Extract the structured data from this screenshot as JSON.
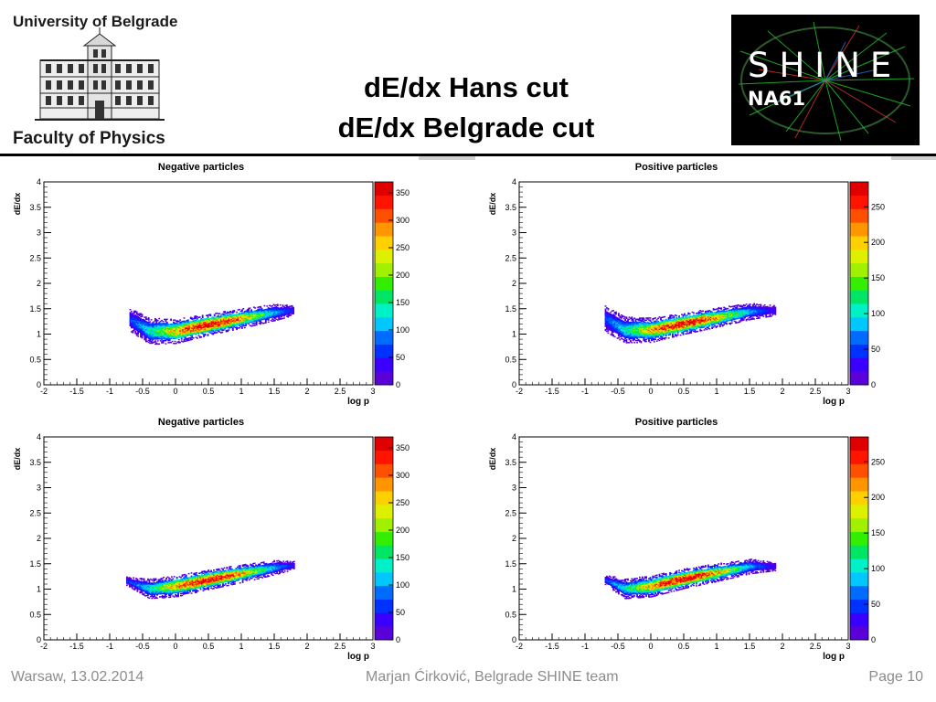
{
  "header": {
    "university": "University of Belgrade",
    "faculty": "Faculty of Physics",
    "title_line1": "dE/dx Hans cut",
    "title_line2": "dE/dx Belgrade cut",
    "shine_logo_word": "SHINE",
    "shine_logo_sub": "NA61"
  },
  "footer": {
    "left": "Warsaw, 13.02.2014",
    "center": "Marjan Ćirković, Belgrade SHINE team",
    "right": "Page 10"
  },
  "colors": {
    "heat_scale": [
      "#5a00d8",
      "#3a00ff",
      "#0032ff",
      "#006cff",
      "#00c8ff",
      "#00f0c8",
      "#00e664",
      "#33ee00",
      "#a0f000",
      "#dcf000",
      "#ffd000",
      "#ff9600",
      "#ff5000",
      "#ff1400",
      "#e00000"
    ],
    "title_bar": "#000000",
    "footer_text": "#8c8c8c"
  },
  "chart_data": [
    {
      "type": "heatmap",
      "title": "Negative particles",
      "xlabel": "log p",
      "ylabel": "dE/dx",
      "xlim": [
        -2,
        3
      ],
      "ylim": [
        0,
        4
      ],
      "xticks": [
        -2,
        -1.5,
        -1,
        -0.5,
        0,
        0.5,
        1,
        1.5,
        2,
        2.5,
        3
      ],
      "yticks": [
        0,
        0.5,
        1,
        1.5,
        2,
        2.5,
        3,
        3.5,
        4
      ],
      "zlim": [
        0,
        370
      ],
      "zticks": [
        0,
        50,
        100,
        150,
        200,
        250,
        300,
        350
      ],
      "band": {
        "x": [
          -0.7,
          -0.4,
          0.0,
          0.5,
          1.0,
          1.5,
          1.8
        ],
        "center": [
          1.28,
          1.05,
          1.05,
          1.18,
          1.3,
          1.42,
          1.46
        ],
        "halfwidth": [
          0.14,
          0.16,
          0.15,
          0.13,
          0.12,
          0.1,
          0.06
        ],
        "peak_x": 0.5,
        "peak_value": 360
      }
    },
    {
      "type": "heatmap",
      "title": "Positive particles",
      "xlabel": "log p",
      "ylabel": "dE/dx",
      "xlim": [
        -2,
        3
      ],
      "ylim": [
        0,
        4
      ],
      "xticks": [
        -2,
        -1.5,
        -1,
        -0.5,
        0,
        0.5,
        1,
        1.5,
        2,
        2.5,
        3
      ],
      "yticks": [
        0,
        0.5,
        1,
        1.5,
        2,
        2.5,
        3,
        3.5,
        4
      ],
      "zlim": [
        0,
        285
      ],
      "zticks": [
        0,
        50,
        100,
        150,
        200,
        250
      ],
      "band": {
        "x": [
          -0.7,
          -0.4,
          0.0,
          0.5,
          1.0,
          1.5,
          1.9
        ],
        "center": [
          1.3,
          1.08,
          1.07,
          1.2,
          1.32,
          1.44,
          1.46
        ],
        "halfwidth": [
          0.16,
          0.16,
          0.15,
          0.13,
          0.12,
          0.1,
          0.06
        ],
        "peak_x": 0.5,
        "peak_value": 280
      }
    },
    {
      "type": "heatmap",
      "title": "Negative particles",
      "xlabel": "log p",
      "ylabel": "dE/dx",
      "xlim": [
        -2,
        3
      ],
      "ylim": [
        0,
        4
      ],
      "xticks": [
        -2,
        -1.5,
        -1,
        -0.5,
        0,
        0.5,
        1,
        1.5,
        2,
        2.5,
        3
      ],
      "yticks": [
        0,
        0.5,
        1,
        1.5,
        2,
        2.5,
        3,
        3.5,
        4
      ],
      "zlim": [
        0,
        370
      ],
      "zticks": [
        0,
        50,
        100,
        150,
        200,
        250,
        300,
        350
      ],
      "band": {
        "x": [
          -0.75,
          -0.4,
          0.0,
          0.5,
          1.0,
          1.5,
          1.8
        ],
        "center": [
          1.15,
          1.0,
          1.05,
          1.18,
          1.3,
          1.42,
          1.46
        ],
        "halfwidth": [
          0.05,
          0.12,
          0.13,
          0.12,
          0.11,
          0.09,
          0.05
        ],
        "peak_x": 0.5,
        "peak_value": 360
      }
    },
    {
      "type": "heatmap",
      "title": "Positive particles",
      "xlabel": "log p",
      "ylabel": "dE/dx",
      "xlim": [
        -2,
        3
      ],
      "ylim": [
        0,
        4
      ],
      "xticks": [
        -2,
        -1.5,
        -1,
        -0.5,
        0,
        0.5,
        1,
        1.5,
        2,
        2.5,
        3
      ],
      "yticks": [
        0,
        0.5,
        1,
        1.5,
        2,
        2.5,
        3,
        3.5,
        4
      ],
      "zlim": [
        0,
        285
      ],
      "zticks": [
        0,
        50,
        100,
        150,
        200,
        250
      ],
      "band": {
        "x": [
          -0.7,
          -0.4,
          0.0,
          0.5,
          1.0,
          1.5,
          1.9
        ],
        "center": [
          1.18,
          1.0,
          1.05,
          1.2,
          1.32,
          1.44,
          1.44
        ],
        "halfwidth": [
          0.06,
          0.12,
          0.13,
          0.12,
          0.11,
          0.09,
          0.05
        ],
        "peak_x": 0.5,
        "peak_value": 280
      }
    }
  ]
}
